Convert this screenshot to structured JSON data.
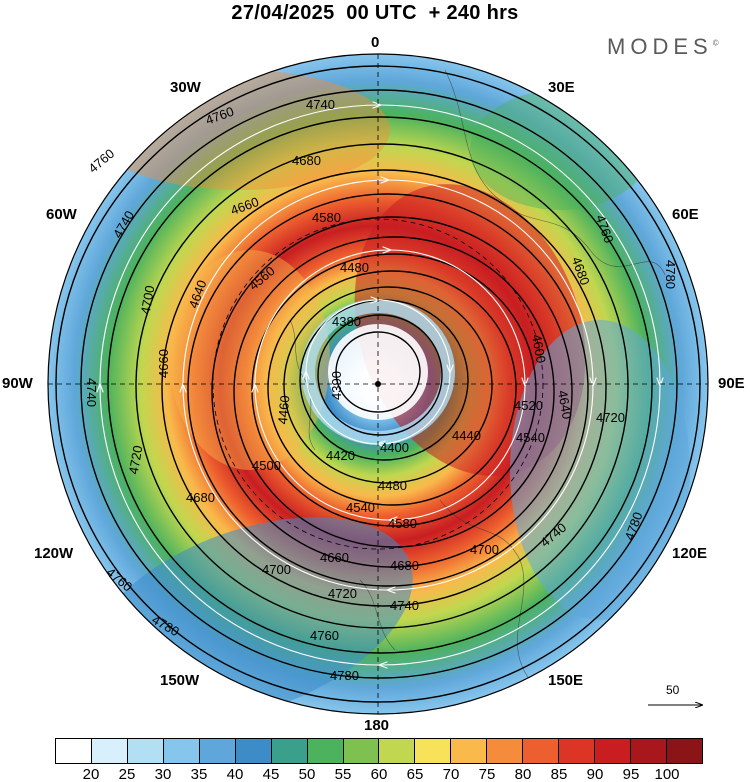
{
  "title": "27/04/2025  00 UTC  + 240 hrs",
  "brand": "MODES",
  "brand_mark": "©",
  "longitude_labels": {
    "n": "0",
    "nne": "30E",
    "ene": "60E",
    "e": "90E",
    "ese": "120E",
    "sse": "150E",
    "s": "180",
    "ssw": "150W",
    "wsw": "120W",
    "w": "90W",
    "wnw": "60W",
    "nnw": "30W"
  },
  "contour_labels": {
    "c4380": "4380",
    "c4390": "4390",
    "c4400": "4400",
    "c4420": "4420",
    "c4440": "4440",
    "c4460": "4460",
    "c4480": "4480",
    "c4500": "4500",
    "c4520": "4520",
    "c4540": "4540",
    "c4560": "4560",
    "c4580": "4580",
    "c4600": "4600",
    "c4640": "4640",
    "c4660": "4660",
    "c4680": "4680",
    "c4700": "4700",
    "c4720": "4720",
    "c4740": "4740",
    "c4760": "4760",
    "c4780": "4780"
  },
  "reference_vector": "50",
  "colorbar": {
    "colors": [
      "#ffffff",
      "#d8f0fb",
      "#b3dff5",
      "#86c5ec",
      "#5fa7da",
      "#3d8cc8",
      "#3aa08b",
      "#4cb25e",
      "#7fc150",
      "#c0d74f",
      "#f7e25a",
      "#f9b94b",
      "#f58c3c",
      "#ed5f2e",
      "#dd3525",
      "#c81e22",
      "#a8171c",
      "#8b1417"
    ],
    "labels": [
      "20",
      "25",
      "30",
      "35",
      "40",
      "45",
      "50",
      "55",
      "60",
      "65",
      "70",
      "75",
      "80",
      "85",
      "90",
      "95",
      "100"
    ]
  }
}
